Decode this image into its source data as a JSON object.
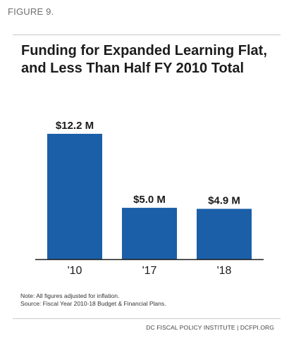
{
  "figure_label": "FIGURE 9.",
  "title": "Funding for Expanded Learning Flat, and Less Than Half FY 2010 Total",
  "notes": {
    "line1": "Note: All figures adjusted for inflation.",
    "line2": "Source: Fiscal Year 2010-18 Budget & Financial Plans."
  },
  "footer": "DC FISCAL POLICY INSTITUTE | DCFPI.ORG",
  "colors": {
    "bar": "#1b5fa8",
    "baseline": "#1a1a1a"
  },
  "chart_data": {
    "type": "bar",
    "categories": [
      "'10",
      "'17",
      "'18"
    ],
    "values": [
      12.2,
      5.0,
      4.9
    ],
    "data_labels": [
      "$12.2 M",
      "$5.0 M",
      "$4.9 M"
    ],
    "title": "Funding for Expanded Learning Flat, and Less Than Half FY 2010 Total",
    "xlabel": "",
    "ylabel": "",
    "ylim": [
      0,
      12.2
    ],
    "grid": false,
    "legend": "none"
  }
}
